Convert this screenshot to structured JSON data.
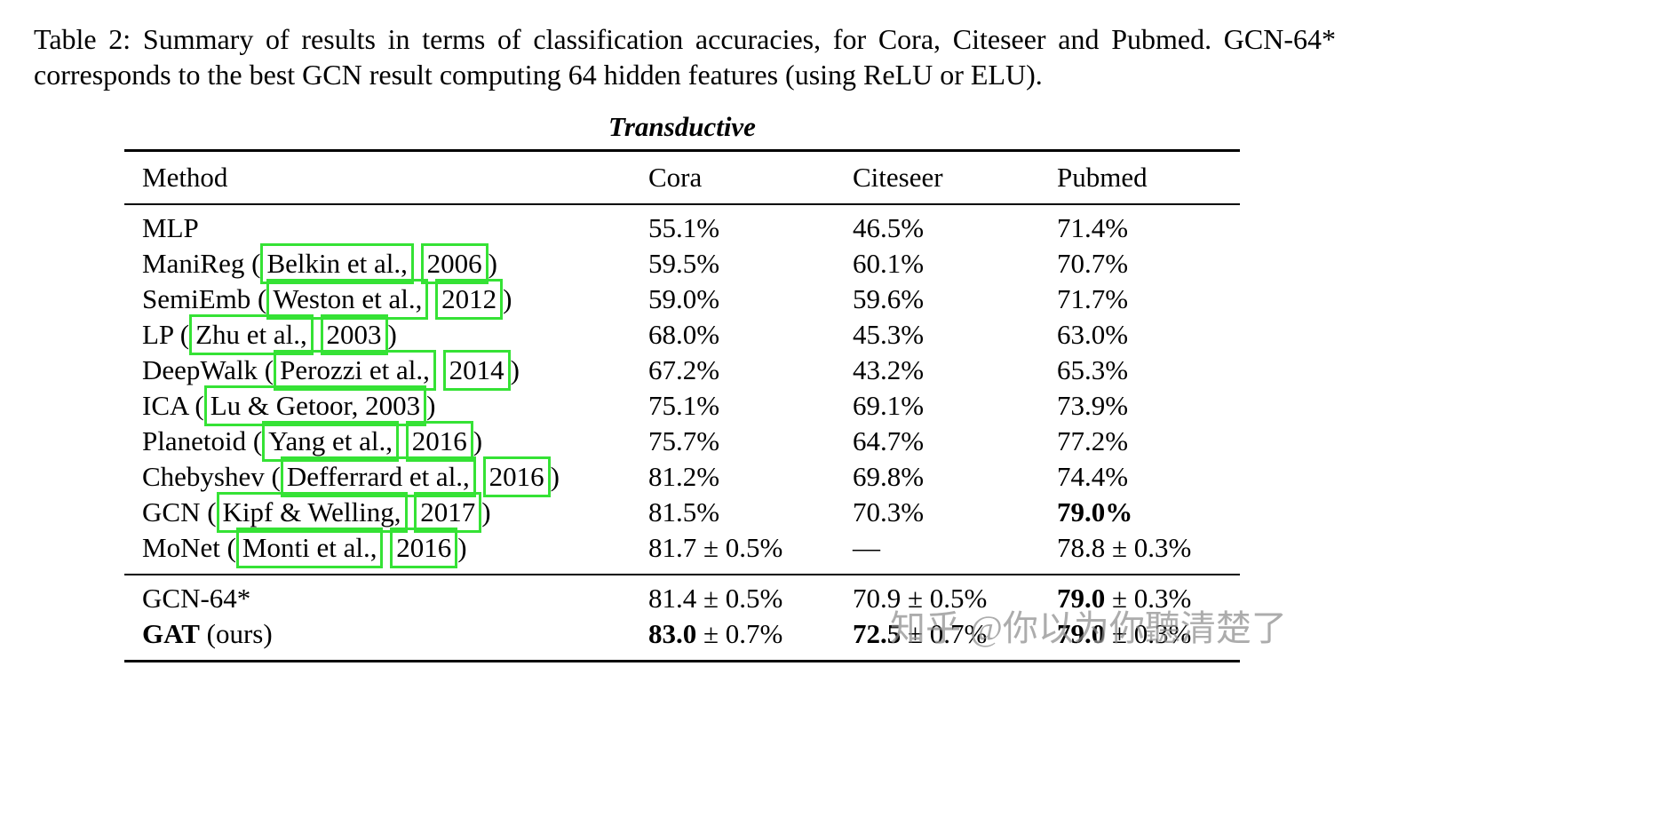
{
  "caption": "Table 2: Summary of results in terms of classification accuracies, for Cora, Citeseer and Pubmed. GCN-64* corresponds to the best GCN result computing 64 hidden features (using ReLU or ELU).",
  "table": {
    "title": "Transductive",
    "headers": [
      "Method",
      "Cora",
      "Citeseer",
      "Pubmed"
    ],
    "main_rows": [
      [
        [
          {
            "t": "MLP"
          }
        ],
        [
          {
            "t": "55.1%"
          }
        ],
        [
          {
            "t": "46.5%"
          }
        ],
        [
          {
            "t": "71.4%"
          }
        ]
      ],
      [
        [
          {
            "t": "ManiReg ("
          },
          {
            "t": "Belkin et al.,",
            "box": true
          },
          {
            "t": " "
          },
          {
            "t": "2006",
            "box": true
          },
          {
            "t": ")"
          }
        ],
        [
          {
            "t": "59.5%"
          }
        ],
        [
          {
            "t": "60.1%"
          }
        ],
        [
          {
            "t": "70.7%"
          }
        ]
      ],
      [
        [
          {
            "t": "SemiEmb ("
          },
          {
            "t": "Weston et al.,",
            "box": true
          },
          {
            "t": " "
          },
          {
            "t": "2012",
            "box": true
          },
          {
            "t": ")"
          }
        ],
        [
          {
            "t": "59.0%"
          }
        ],
        [
          {
            "t": "59.6%"
          }
        ],
        [
          {
            "t": "71.7%"
          }
        ]
      ],
      [
        [
          {
            "t": "LP ("
          },
          {
            "t": "Zhu et al.,",
            "box": true
          },
          {
            "t": " "
          },
          {
            "t": "2003",
            "box": true
          },
          {
            "t": ")"
          }
        ],
        [
          {
            "t": "68.0%"
          }
        ],
        [
          {
            "t": "45.3%"
          }
        ],
        [
          {
            "t": "63.0%"
          }
        ]
      ],
      [
        [
          {
            "t": "DeepWalk ("
          },
          {
            "t": "Perozzi et al.,",
            "box": true
          },
          {
            "t": " "
          },
          {
            "t": "2014",
            "box": true
          },
          {
            "t": ")"
          }
        ],
        [
          {
            "t": "67.2%"
          }
        ],
        [
          {
            "t": "43.2%"
          }
        ],
        [
          {
            "t": "65.3%"
          }
        ]
      ],
      [
        [
          {
            "t": "ICA ("
          },
          {
            "t": "Lu & Getoor, 2003",
            "box": true
          },
          {
            "t": ")"
          }
        ],
        [
          {
            "t": "75.1%"
          }
        ],
        [
          {
            "t": "69.1%"
          }
        ],
        [
          {
            "t": "73.9%"
          }
        ]
      ],
      [
        [
          {
            "t": "Planetoid ("
          },
          {
            "t": "Yang et al.,",
            "box": true
          },
          {
            "t": " "
          },
          {
            "t": "2016",
            "box": true
          },
          {
            "t": ")"
          }
        ],
        [
          {
            "t": "75.7%"
          }
        ],
        [
          {
            "t": "64.7%"
          }
        ],
        [
          {
            "t": "77.2%"
          }
        ]
      ],
      [
        [
          {
            "t": "Chebyshev ("
          },
          {
            "t": "Defferrard et al.,",
            "box": true
          },
          {
            "t": " "
          },
          {
            "t": "2016",
            "box": true
          },
          {
            "t": ")"
          }
        ],
        [
          {
            "t": "81.2%"
          }
        ],
        [
          {
            "t": "69.8%"
          }
        ],
        [
          {
            "t": "74.4%"
          }
        ]
      ],
      [
        [
          {
            "t": "GCN ("
          },
          {
            "t": "Kipf & Welling,",
            "box": true
          },
          {
            "t": " "
          },
          {
            "t": "2017",
            "box": true
          },
          {
            "t": ")"
          }
        ],
        [
          {
            "t": "81.5%"
          }
        ],
        [
          {
            "t": "70.3%"
          }
        ],
        [
          {
            "t": "79.0%",
            "b": true
          }
        ]
      ],
      [
        [
          {
            "t": "MoNet ("
          },
          {
            "t": "Monti et al.,",
            "box": true
          },
          {
            "t": " "
          },
          {
            "t": "2016",
            "box": true
          },
          {
            "t": ")"
          }
        ],
        [
          {
            "t": "81.7 ± 0.5%"
          }
        ],
        [
          {
            "t": "—"
          }
        ],
        [
          {
            "t": "78.8 ± 0.3%"
          }
        ]
      ]
    ],
    "bottom_rows": [
      [
        [
          {
            "t": "GCN-64*"
          }
        ],
        [
          {
            "t": "81.4 ± 0.5%"
          }
        ],
        [
          {
            "t": "70.9 ± 0.5%"
          }
        ],
        [
          {
            "t": "79.0",
            "b": true
          },
          {
            "t": " ± 0.3%"
          }
        ]
      ],
      [
        [
          {
            "t": "GAT",
            "b": true
          },
          {
            "t": " (ours)"
          }
        ],
        [
          {
            "t": "83.0",
            "b": true
          },
          {
            "t": " ± 0.7%"
          }
        ],
        [
          {
            "t": "72.5",
            "b": true
          },
          {
            "t": " ± 0.7%"
          }
        ],
        [
          {
            "t": "79.0",
            "b": true
          },
          {
            "t": " ± 0.3%"
          }
        ]
      ]
    ]
  },
  "watermark": "知乎 @你以为你聽清楚了",
  "colors": {
    "annotation_box": "#35e235",
    "watermark_gray": "#8c8c8c"
  }
}
